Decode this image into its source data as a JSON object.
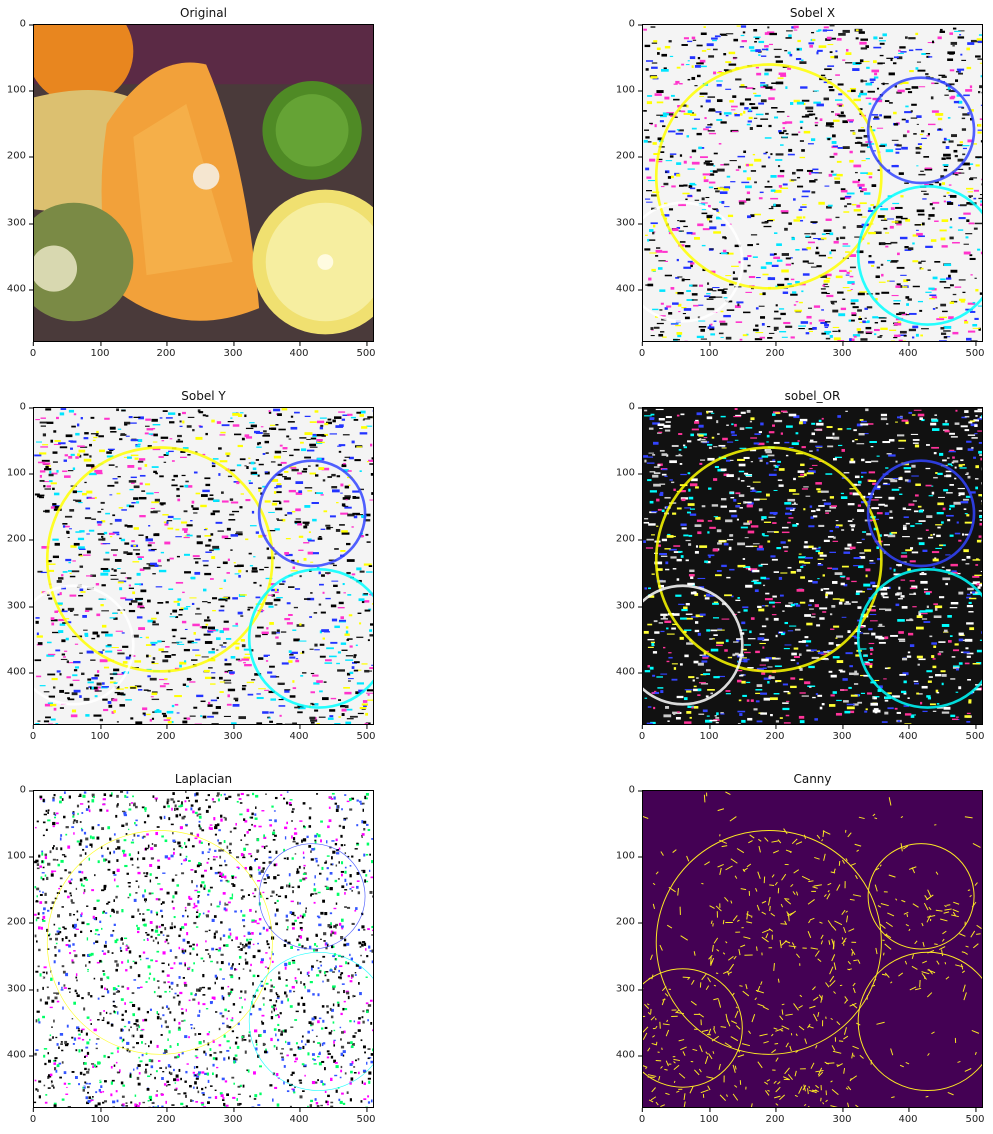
{
  "figure": {
    "panels": [
      {
        "id": "original",
        "title": "Original",
        "style": "photo"
      },
      {
        "id": "sobel-x",
        "title": "Sobel X",
        "style": "edge-color"
      },
      {
        "id": "sobel-y",
        "title": "Sobel Y",
        "style": "edge-color"
      },
      {
        "id": "sobel-or",
        "title": "sobel_OR",
        "style": "edge-dark"
      },
      {
        "id": "laplacian",
        "title": "Laplacian",
        "style": "noise"
      },
      {
        "id": "canny",
        "title": "Canny",
        "style": "canny"
      }
    ],
    "x_ticks": [
      "0",
      "100",
      "200",
      "300",
      "400",
      "500"
    ],
    "x_tick_values": [
      0,
      100,
      200,
      300,
      400,
      500
    ],
    "y_ticks": [
      "0",
      "100",
      "200",
      "300",
      "400"
    ],
    "y_tick_values": [
      0,
      100,
      200,
      300,
      400
    ],
    "image_width": 512,
    "image_height": 480,
    "colors": {
      "canny_background": "#440154",
      "canny_edges": "#fde725"
    }
  }
}
